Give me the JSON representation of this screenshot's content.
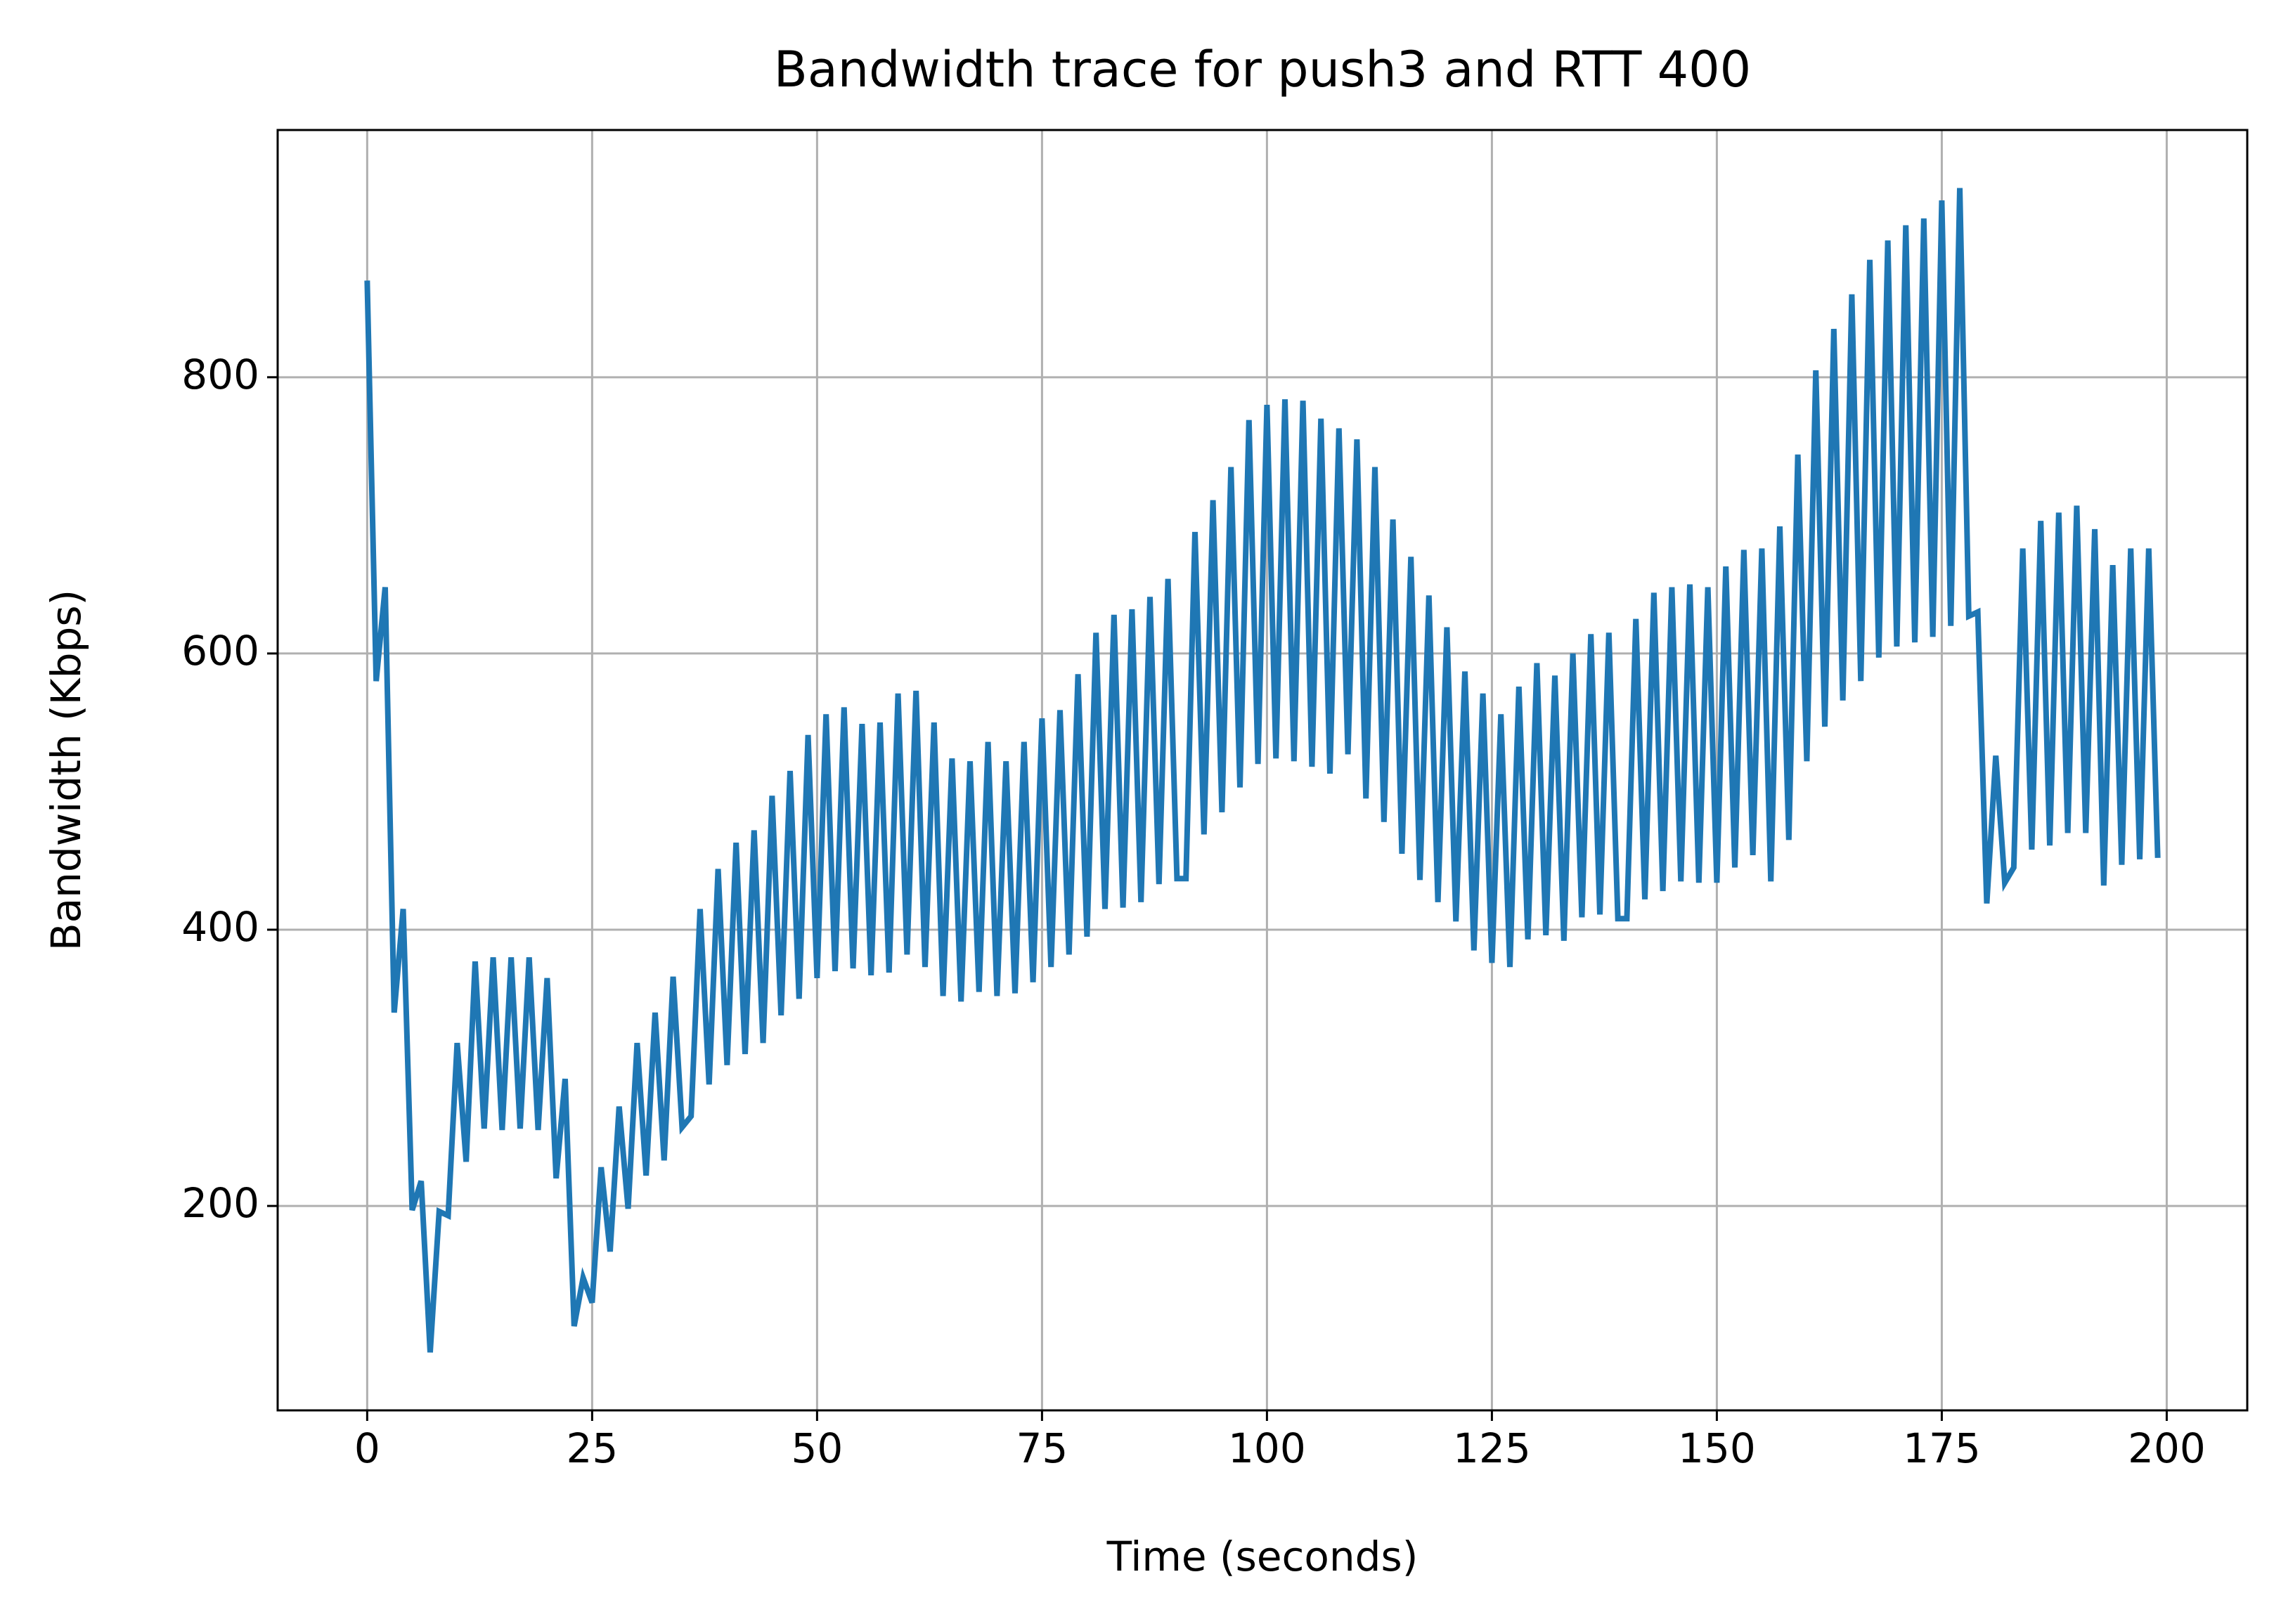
{
  "chart_data": {
    "type": "line",
    "title": "Bandwidth trace for push3 and RTT 400",
    "xlabel": "Time (seconds)",
    "ylabel": "Bandwidth (Kbps)",
    "x": [
      0,
      1,
      2,
      3,
      4,
      5,
      6,
      7,
      8,
      9,
      10,
      11,
      12,
      13,
      14,
      15,
      16,
      17,
      18,
      19,
      20,
      21,
      22,
      23,
      24,
      25,
      26,
      27,
      28,
      29,
      30,
      31,
      32,
      33,
      34,
      35,
      36,
      37,
      38,
      39,
      40,
      41,
      42,
      43,
      44,
      45,
      46,
      47,
      48,
      49,
      50,
      51,
      52,
      53,
      54,
      55,
      56,
      57,
      58,
      59,
      60,
      61,
      62,
      63,
      64,
      65,
      66,
      67,
      68,
      69,
      70,
      71,
      72,
      73,
      74,
      75,
      76,
      77,
      78,
      79,
      80,
      81,
      82,
      83,
      84,
      85,
      86,
      87,
      88,
      89,
      90,
      91,
      92,
      93,
      94,
      95,
      96,
      97,
      98,
      99,
      100,
      101,
      102,
      103,
      104,
      105,
      106,
      107,
      108,
      109,
      110,
      111,
      112,
      113,
      114,
      115,
      116,
      117,
      118,
      119,
      120,
      121,
      122,
      123,
      124,
      125,
      126,
      127,
      128,
      129,
      130,
      131,
      132,
      133,
      134,
      135,
      136,
      137,
      138,
      139,
      140,
      141,
      142,
      143,
      144,
      145,
      146,
      147,
      148,
      149,
      150,
      151,
      152,
      153,
      154,
      155,
      156,
      157,
      158,
      159,
      160,
      161,
      162,
      163,
      164,
      165,
      166,
      167,
      168,
      169,
      170,
      171,
      172,
      173,
      174,
      175,
      176,
      177,
      178,
      179,
      180,
      181,
      182,
      183,
      184,
      185,
      186,
      187,
      188,
      189,
      190,
      191,
      192,
      193,
      194,
      195,
      196,
      197,
      198,
      199
    ],
    "series": [
      {
        "name": "bandwidth",
        "color": "#1f77b4",
        "values": [
          870,
          580,
          648,
          340,
          415,
          197,
          218,
          94,
          196,
          193,
          318,
          232,
          377,
          256,
          380,
          255,
          380,
          256,
          380,
          255,
          365,
          220,
          292,
          113,
          148,
          130,
          228,
          167,
          272,
          198,
          318,
          222,
          340,
          233,
          366,
          257,
          265,
          415,
          288,
          444,
          302,
          463,
          310,
          472,
          318,
          497,
          338,
          515,
          350,
          541,
          365,
          556,
          370,
          561,
          372,
          549,
          367,
          550,
          369,
          571,
          382,
          573,
          373,
          550,
          352,
          524,
          348,
          522,
          355,
          536,
          352,
          522,
          354,
          536,
          362,
          553,
          373,
          559,
          382,
          585,
          395,
          615,
          415,
          628,
          416,
          632,
          420,
          641,
          433,
          654,
          437,
          437,
          688,
          469,
          711,
          485,
          735,
          503,
          769,
          520,
          780,
          524,
          784,
          522,
          783,
          518,
          770,
          513,
          763,
          527,
          755,
          495,
          735,
          478,
          697,
          455,
          670,
          436,
          642,
          420,
          619,
          406,
          587,
          385,
          571,
          376,
          556,
          373,
          576,
          393,
          593,
          396,
          584,
          392,
          600,
          409,
          614,
          411,
          615,
          408,
          408,
          625,
          422,
          644,
          428,
          648,
          435,
          650,
          434,
          648,
          434,
          663,
          445,
          675,
          454,
          676,
          435,
          692,
          465,
          744,
          522,
          805,
          547,
          835,
          566,
          860,
          580,
          885,
          597,
          899,
          605,
          910,
          608,
          915,
          612,
          928,
          620,
          937,
          627,
          630,
          419,
          526,
          434,
          445,
          676,
          458,
          696,
          461,
          702,
          470,
          707,
          470,
          690,
          432,
          664,
          447,
          676,
          451,
          676,
          452
        ]
      }
    ],
    "xlim": [
      -9.95,
      208.95
    ],
    "ylim": [
      52,
      979
    ],
    "xticks": [
      0,
      25,
      50,
      75,
      100,
      125,
      150,
      175,
      200
    ],
    "yticks": [
      200,
      400,
      600,
      800
    ],
    "grid": true
  }
}
